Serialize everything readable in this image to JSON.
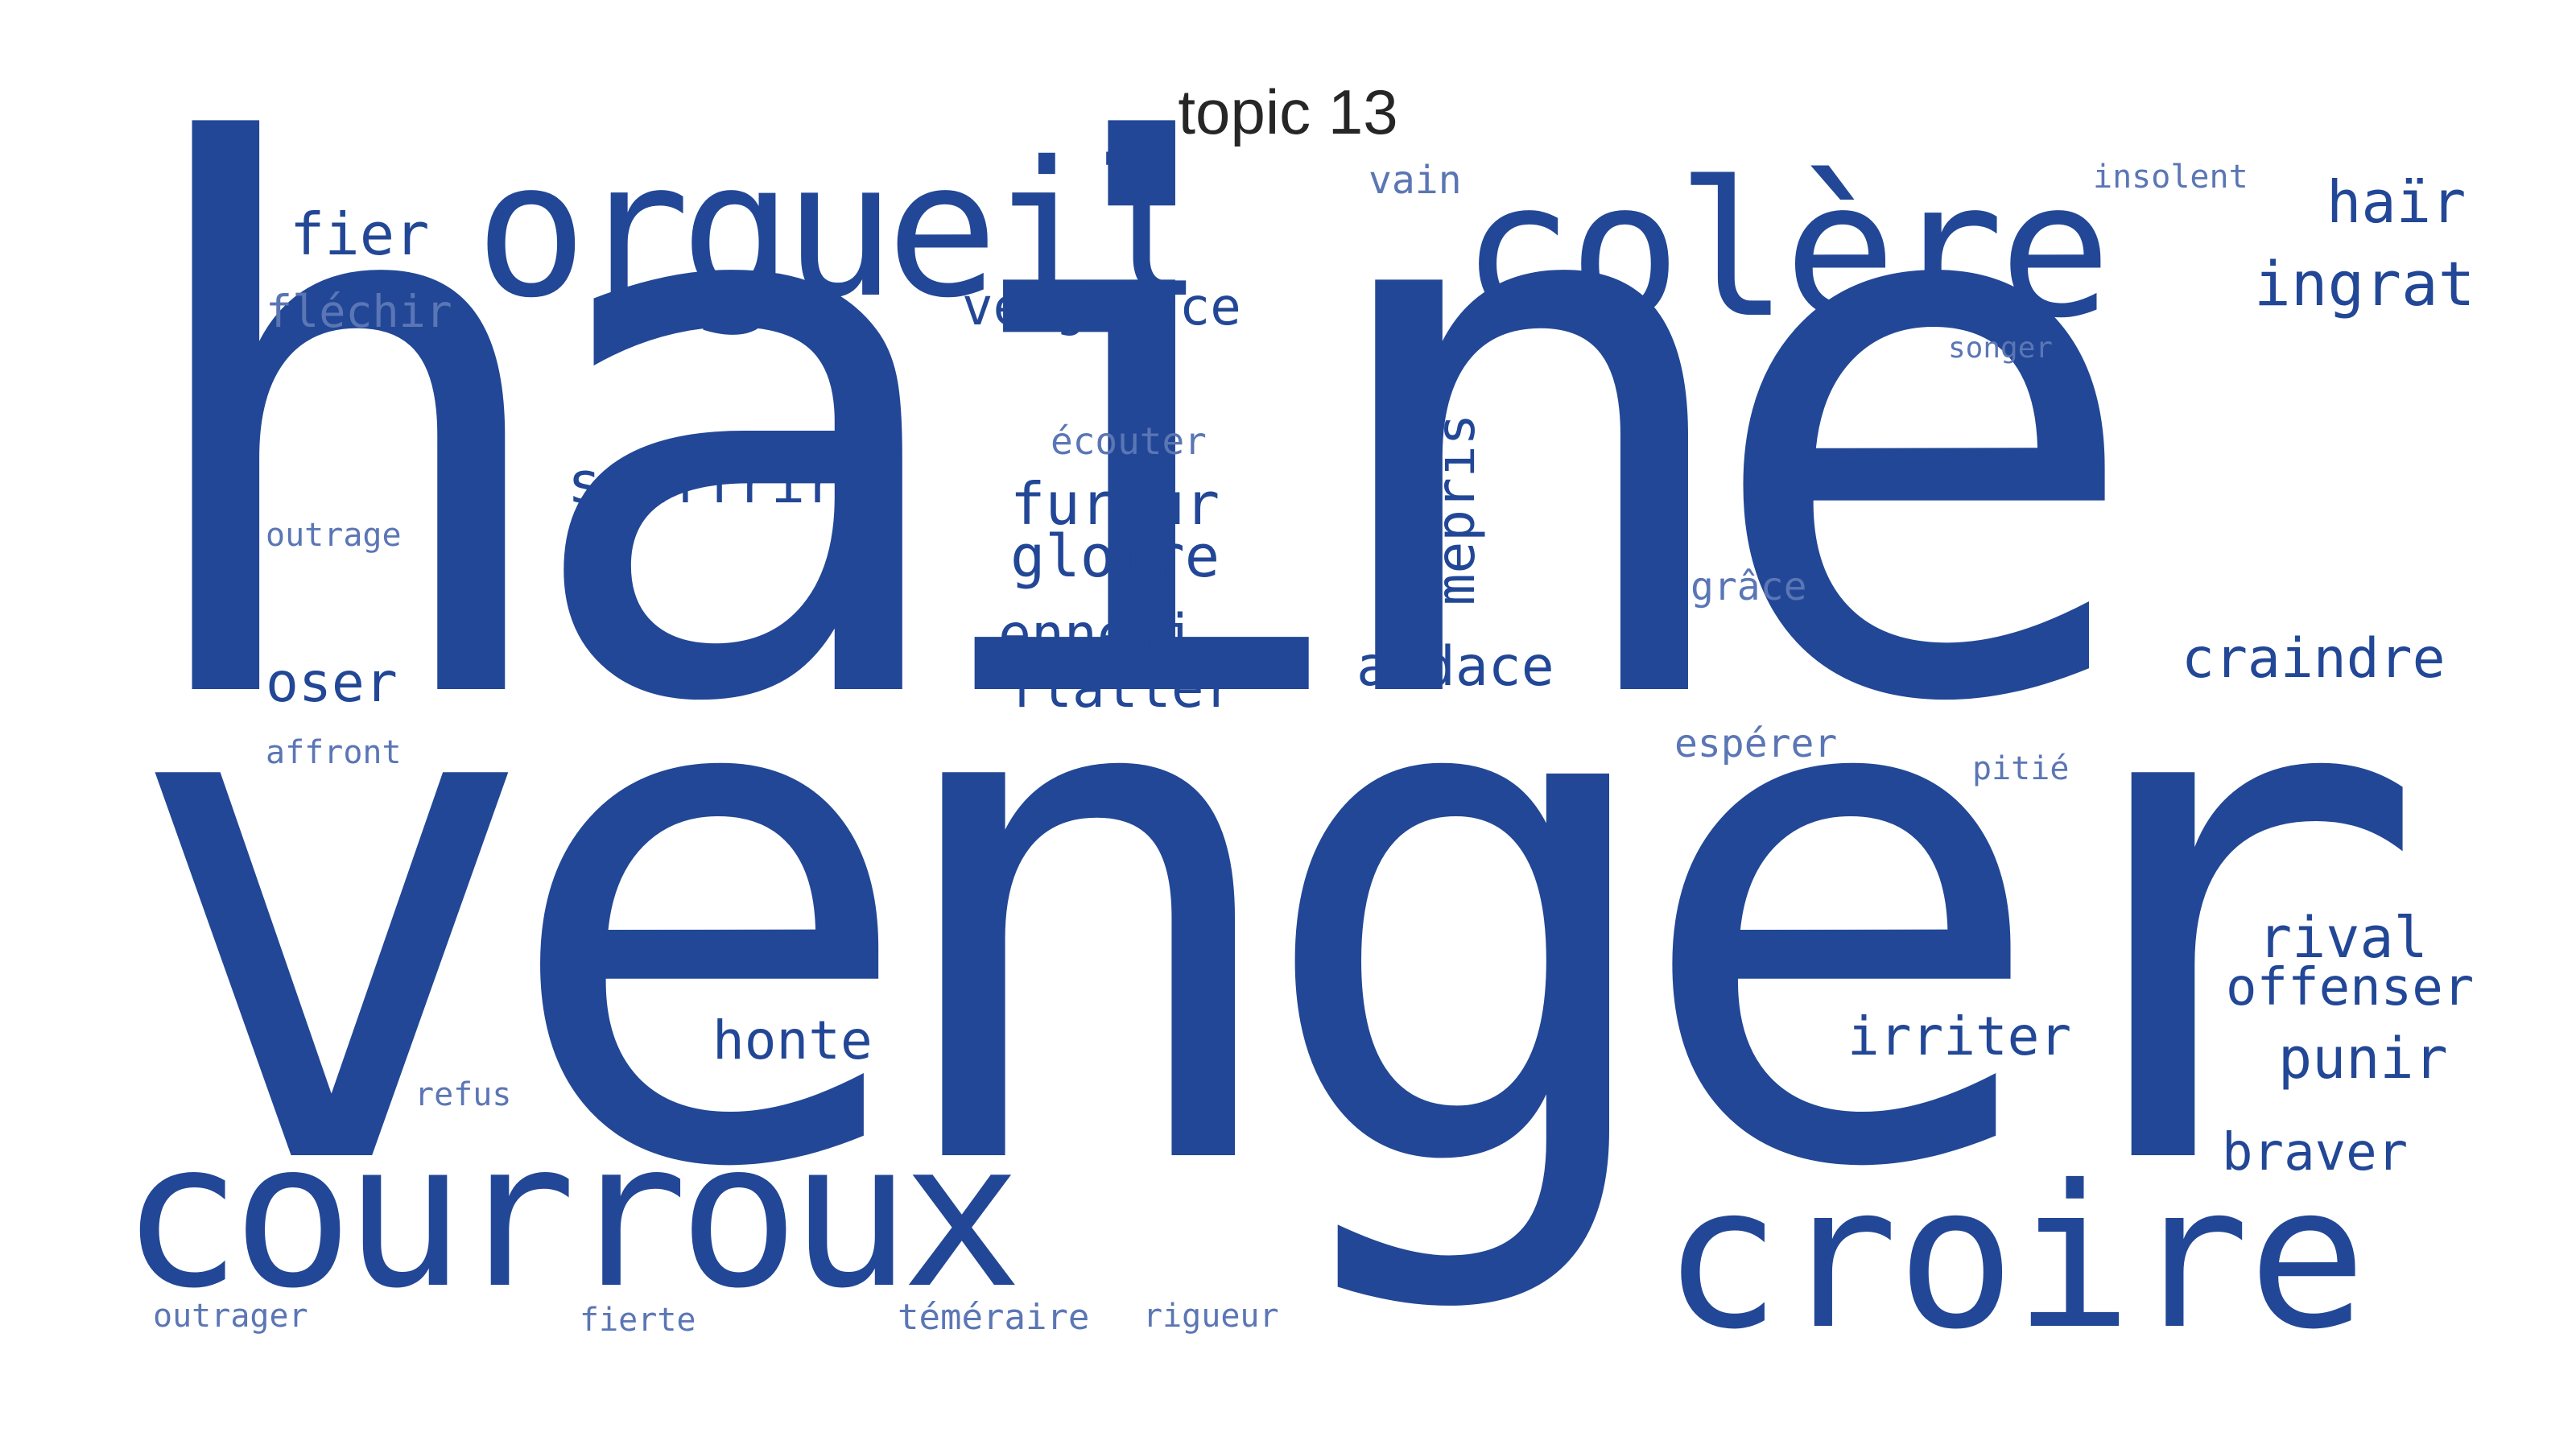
{
  "title": "topic 13",
  "color": "#224796",
  "words": [
    "haine",
    "venger",
    "orgueil",
    "colère",
    "courroux",
    "croire",
    "vengeance",
    "fier",
    "fléchir",
    "vain",
    "insolent",
    "haïr",
    "ingrat",
    "songer",
    "écouter",
    "mépris",
    "souffrir",
    "fureur",
    "gloire",
    "outrage",
    "grâce",
    "ennemi",
    "flatter",
    "audace",
    "craindre",
    "oser",
    "affront",
    "espérer",
    "pitié",
    "rival",
    "offenser",
    "honte",
    "irriter",
    "punir",
    "refus",
    "braver",
    "outrager",
    "fierte",
    "téméraire",
    "rigueur"
  ]
}
